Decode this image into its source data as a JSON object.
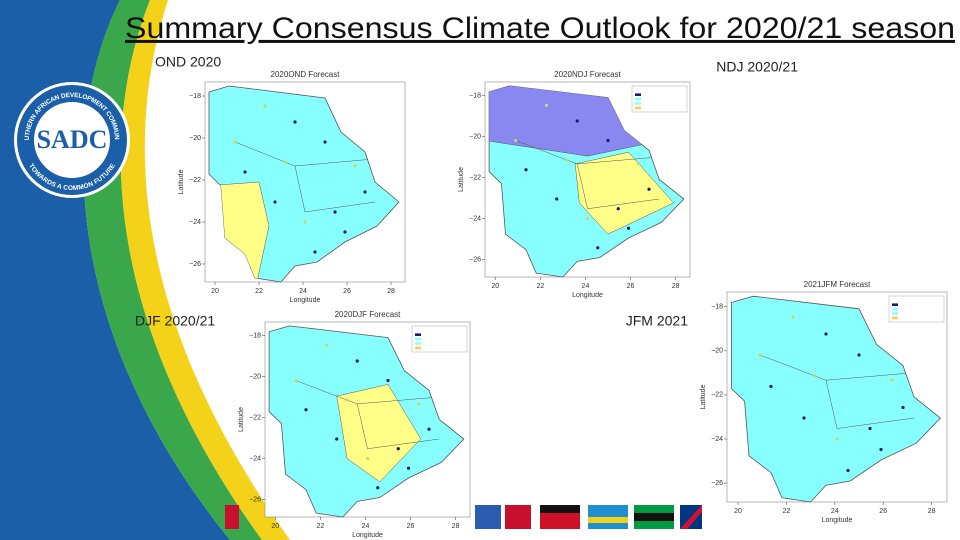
{
  "title": "Summary Consensus Climate Outlook for 2020/21 season",
  "logo": {
    "acronym": "SADC",
    "ring_top": "SOUTHERN AFRICAN DEVELOPMENT COMMUNITY",
    "ring_bottom": "TOWARDS A COMMON FUTURE"
  },
  "panels": [
    {
      "label": "OND 2020",
      "map_title": "2020OND Forecast",
      "x_label": "Longitude",
      "y_label": "Latitude",
      "x_ticks": [
        "20",
        "22",
        "24",
        "26",
        "28"
      ],
      "y_ticks": [
        "−18",
        "−20",
        "−22",
        "−24",
        "−26"
      ]
    },
    {
      "label": "NDJ 2020/21",
      "map_title": "2020NDJ Forecast",
      "x_label": "Longitude",
      "y_label": "Latitude",
      "x_ticks": [
        "20",
        "22",
        "24",
        "26",
        "28"
      ],
      "y_ticks": [
        "−18",
        "−20",
        "−22",
        "−24",
        "−26"
      ]
    },
    {
      "label": "DJF 2020/21",
      "map_title": "2020DJF Forecast",
      "x_label": "Longitude",
      "y_label": "Latitude",
      "x_ticks": [
        "20",
        "22",
        "24",
        "26",
        "28"
      ],
      "y_ticks": [
        "−18",
        "−20",
        "−22",
        "−24",
        "−26"
      ]
    },
    {
      "label": "JFM 2021",
      "map_title": "2021JFM Forecast",
      "x_label": "Longitude",
      "y_label": "Latitude",
      "x_ticks": [
        "20",
        "22",
        "24",
        "26",
        "28"
      ],
      "y_ticks": [
        "−18",
        "−20",
        "−22",
        "−24",
        "−26"
      ]
    }
  ]
}
